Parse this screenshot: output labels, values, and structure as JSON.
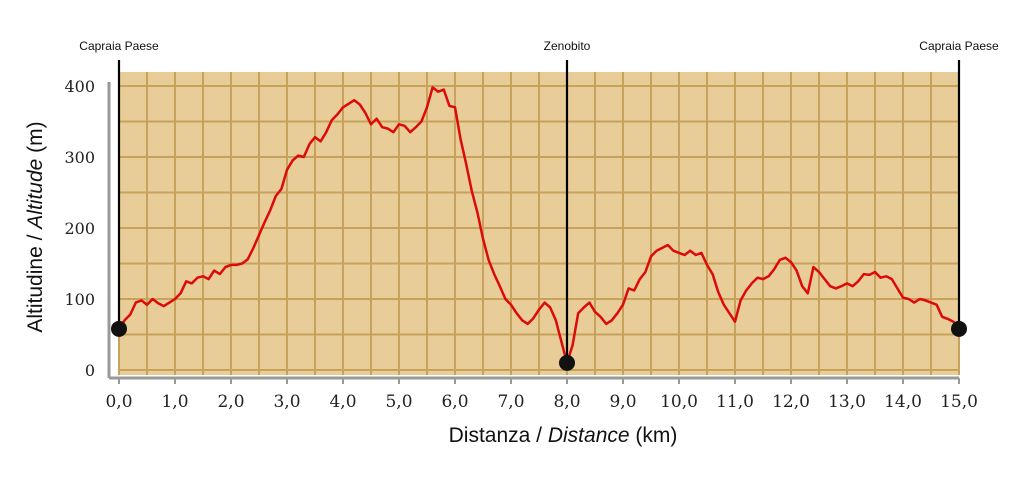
{
  "chart_data": {
    "type": "area",
    "xlabel": {
      "main": "Distanza / ",
      "italic": "Distance",
      "unit": " (km)"
    },
    "ylabel": {
      "main": "Altitudine / ",
      "italic": "Altitude",
      "unit": " (m)"
    },
    "xlim": [
      0,
      15
    ],
    "ylim": [
      0,
      400
    ],
    "x_ticks": [
      "0,0",
      "1,0",
      "2,0",
      "3,0",
      "4,0",
      "5,0",
      "6,0",
      "7,0",
      "8,0",
      "9,0",
      "10,0",
      "11,0",
      "12,0",
      "13,0",
      "14,0",
      "15,0"
    ],
    "y_ticks": [
      "0",
      "100",
      "200",
      "300",
      "400"
    ],
    "grid": true,
    "colors": {
      "fill": "#e9cd98",
      "grid": "#c8a25a",
      "line": "#dd0a0a",
      "marker": "#111111",
      "axis": "#999999"
    },
    "waypoints": [
      {
        "name": "Capraia Paese",
        "x": 0.0,
        "y": 58
      },
      {
        "name": "Zenobito",
        "x": 8.0,
        "y": 10
      },
      {
        "name": "Capraia Paese",
        "x": 15.0,
        "y": 58
      }
    ],
    "series": [
      {
        "x": [
          0,
          0.1,
          0.2,
          0.3,
          0.4,
          0.5,
          0.6,
          0.7,
          0.8,
          0.9,
          1.0,
          1.1,
          1.2,
          1.3,
          1.4,
          1.5,
          1.6,
          1.7,
          1.8,
          1.9,
          2.0,
          2.1,
          2.2,
          2.3,
          2.4,
          2.5,
          2.6,
          2.7,
          2.8,
          2.9,
          3.0,
          3.1,
          3.2,
          3.3,
          3.4,
          3.5,
          3.6,
          3.7,
          3.8,
          3.9,
          4.0,
          4.1,
          4.2,
          4.3,
          4.4,
          4.5,
          4.6,
          4.7,
          4.8,
          4.9,
          5.0,
          5.1,
          5.2,
          5.3,
          5.4,
          5.5,
          5.6,
          5.7,
          5.8,
          5.9,
          6.0,
          6.1,
          6.2,
          6.3,
          6.4,
          6.5,
          6.6,
          6.7,
          6.8,
          6.9,
          7.0,
          7.1,
          7.2,
          7.3,
          7.4,
          7.5,
          7.6,
          7.7,
          7.8,
          7.9,
          8.0,
          8.1,
          8.2,
          8.3,
          8.4,
          8.5,
          8.6,
          8.7,
          8.8,
          8.9,
          9.0,
          9.1,
          9.2,
          9.3,
          9.4,
          9.5,
          9.6,
          9.7,
          9.8,
          9.9,
          10.0,
          10.1,
          10.2,
          10.3,
          10.4,
          10.5,
          10.6,
          10.7,
          10.8,
          10.9,
          11.0,
          11.1,
          11.2,
          11.3,
          11.4,
          11.5,
          11.6,
          11.7,
          11.8,
          11.9,
          12.0,
          12.1,
          12.2,
          12.3,
          12.4,
          12.5,
          12.6,
          12.7,
          12.8,
          12.9,
          13.0,
          13.1,
          13.2,
          13.3,
          13.4,
          13.5,
          13.6,
          13.7,
          13.8,
          13.9,
          14.0,
          14.1,
          14.2,
          14.3,
          14.4,
          14.5,
          14.6,
          14.7,
          14.8,
          14.9,
          15.0
        ],
        "values": [
          58,
          70,
          78,
          95,
          98,
          92,
          100,
          94,
          90,
          95,
          100,
          108,
          125,
          122,
          130,
          132,
          128,
          140,
          135,
          145,
          148,
          148,
          150,
          156,
          172,
          190,
          208,
          225,
          245,
          255,
          282,
          295,
          302,
          300,
          318,
          328,
          322,
          335,
          352,
          360,
          370,
          375,
          380,
          374,
          362,
          346,
          354,
          342,
          340,
          335,
          346,
          344,
          335,
          342,
          350,
          370,
          398,
          392,
          395,
          372,
          370,
          325,
          290,
          252,
          222,
          185,
          155,
          135,
          118,
          100,
          92,
          80,
          70,
          65,
          73,
          85,
          95,
          88,
          70,
          40,
          10,
          35,
          80,
          88,
          95,
          82,
          75,
          65,
          70,
          80,
          92,
          115,
          112,
          128,
          138,
          160,
          168,
          172,
          176,
          168,
          165,
          162,
          168,
          162,
          165,
          148,
          135,
          110,
          92,
          80,
          68,
          98,
          112,
          122,
          130,
          128,
          132,
          142,
          155,
          158,
          152,
          140,
          118,
          108,
          145,
          138,
          128,
          118,
          115,
          118,
          122,
          118,
          125,
          135,
          134,
          138,
          130,
          132,
          128,
          115,
          102,
          100,
          95,
          100,
          98,
          95,
          92,
          75,
          72,
          68,
          58
        ]
      }
    ]
  }
}
